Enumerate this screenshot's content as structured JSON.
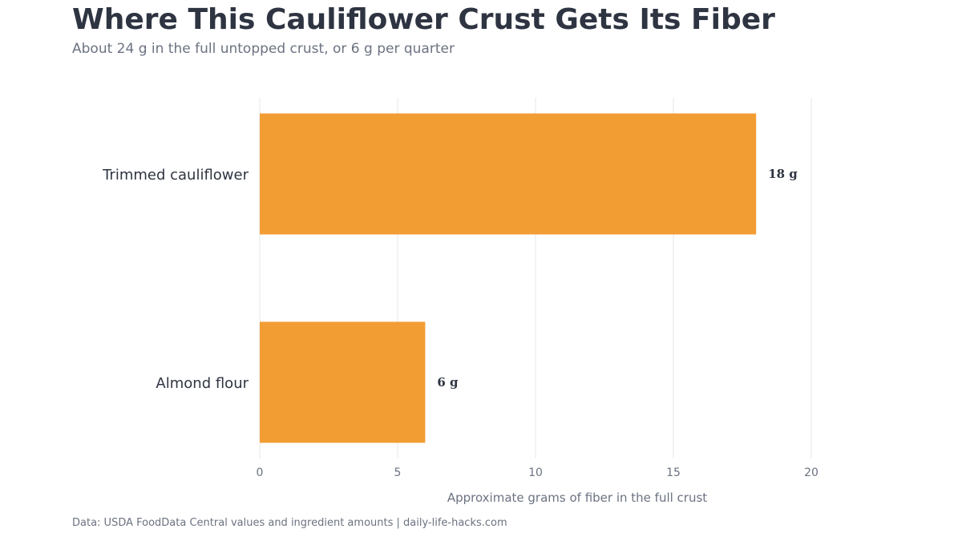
{
  "header": {
    "title": "Where This Cauliflower Crust Gets Its Fiber",
    "subtitle": "About 24 g in the full untopped crust, or 6 g per quarter"
  },
  "footer": {
    "source": "Data: USDA FoodData Central values and ingredient amounts | daily-life-hacks.com"
  },
  "colors": {
    "bar": "#f29d34",
    "grid": "#e5e7eb"
  },
  "chart_data": {
    "type": "bar",
    "orientation": "horizontal",
    "title": "Where This Cauliflower Crust Gets Its Fiber",
    "subtitle": "About 24 g in the full untopped crust, or 6 g per quarter",
    "xlabel": "Approximate grams of fiber in the full crust",
    "ylabel": "",
    "categories": [
      "Trimmed cauliflower",
      "Almond flour"
    ],
    "values": [
      18,
      6
    ],
    "data_labels": [
      "18 g",
      "6 g"
    ],
    "xlim": [
      0,
      20
    ],
    "xticks": [
      0,
      5,
      10,
      15,
      20
    ],
    "grid": "vertical",
    "legend": "none"
  }
}
